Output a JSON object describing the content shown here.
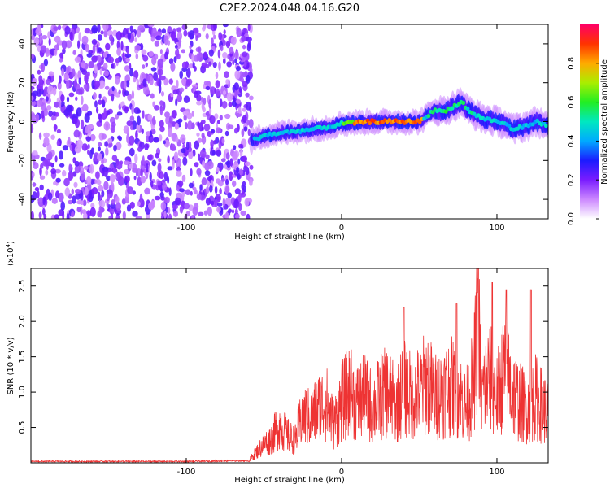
{
  "title": "C2E2.2024.048.04.16.G20",
  "chart_data": [
    {
      "type": "heatmap",
      "xlabel": "Height of straight line (km)",
      "ylabel": "Frequency (Hz)",
      "xlim": [
        -200,
        133
      ],
      "ylim": [
        -50,
        50
      ],
      "x_ticks": [
        -100,
        0,
        100
      ],
      "y_ticks": [
        -40,
        -20,
        0,
        20,
        40
      ],
      "noise_region_x": [
        -200,
        -58
      ],
      "signal_ridge": {
        "x": [
          -58,
          -50,
          -40,
          -30,
          -20,
          -10,
          0,
          10,
          20,
          30,
          40,
          50,
          55,
          60,
          65,
          70,
          75,
          78,
          80,
          85,
          90,
          95,
          100,
          105,
          110,
          115,
          120,
          125,
          130,
          133
        ],
        "frequency": [
          -10,
          -7,
          -6,
          -5,
          -4,
          -3,
          -1,
          -0.5,
          0,
          0,
          0,
          0,
          3,
          6,
          5,
          7,
          9,
          10,
          7,
          4,
          2,
          1,
          0,
          -1,
          -4,
          -3,
          -2,
          0,
          -1,
          -3
        ]
      },
      "colorbar": {
        "label": "Normalized spectral amplitude",
        "ticks": [
          "0.0",
          "0.2",
          "0.4",
          "0.6",
          "0.8"
        ],
        "range": [
          0,
          1
        ]
      }
    },
    {
      "type": "line",
      "xlabel": "Height of straight line (km)",
      "ylabel": "SNR (10 * v/v)",
      "y_multiplier": "(x10",
      "y_multiplier_exp": "4",
      "y_multiplier_close": ")",
      "xlim": [
        -200,
        133
      ],
      "ylim": [
        0,
        2.75
      ],
      "x_ticks": [
        -100,
        0,
        100
      ],
      "y_ticks": [
        "0.5",
        "1.0",
        "1.5",
        "2.0",
        "2.5"
      ],
      "series": [
        {
          "color": "#ee3333",
          "x": [
            -200,
            -150,
            -100,
            -60,
            -50,
            -45,
            -40,
            -35,
            -30,
            -25,
            -20,
            -15,
            -10,
            -5,
            0,
            5,
            10,
            15,
            20,
            25,
            30,
            35,
            40,
            45,
            50,
            55,
            60,
            65,
            70,
            75,
            80,
            85,
            88,
            90,
            95,
            100,
            105,
            110,
            115,
            120,
            125,
            130,
            133
          ],
          "y": [
            0.02,
            0.02,
            0.02,
            0.03,
            0.35,
            0.45,
            0.7,
            0.5,
            0.4,
            0.9,
            0.8,
            1.0,
            1.1,
            0.7,
            1.1,
            1.3,
            1.1,
            1.2,
            1.0,
            1.2,
            1.3,
            1.0,
            1.4,
            1.2,
            1.3,
            1.5,
            1.2,
            1.3,
            1.4,
            1.3,
            1.0,
            1.5,
            2.6,
            1.2,
            1.6,
            1.2,
            1.7,
            1.3,
            1.1,
            1.0,
            1.2,
            1.0,
            0.9
          ]
        }
      ],
      "annotated_peaks": [
        {
          "x": 40,
          "y": 2.2
        },
        {
          "x": 74,
          "y": 2.25
        },
        {
          "x": 88,
          "y": 2.75
        },
        {
          "x": 97,
          "y": 2.55
        },
        {
          "x": 106,
          "y": 2.45
        },
        {
          "x": 122,
          "y": 2.45
        }
      ]
    }
  ]
}
